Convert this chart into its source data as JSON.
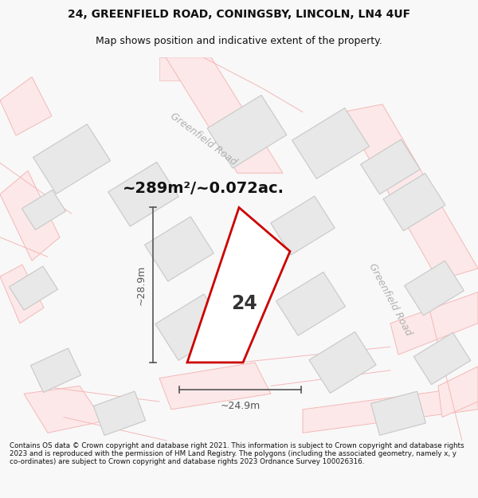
{
  "title": "24, GREENFIELD ROAD, CONINGSBY, LINCOLN, LN4 4UF",
  "subtitle": "Map shows position and indicative extent of the property.",
  "area_text": "~289m²/~0.072ac.",
  "number_label": "24",
  "dim_width": "~24.9m",
  "dim_height": "~28.9m",
  "footer": "Contains OS data © Crown copyright and database right 2021. This information is subject to Crown copyright and database rights 2023 and is reproduced with the permission of HM Land Registry. The polygons (including the associated geometry, namely x, y co-ordinates) are subject to Crown copyright and database rights 2023 Ordnance Survey 100026316.",
  "bg_color": "#f8f8f8",
  "map_bg": "#ffffff",
  "road_line_color": "#f5b8b8",
  "road_fill_color": "#fce8e8",
  "building_color": "#e8e8e8",
  "building_edge": "#c8c8c8",
  "plot_color_red": "#cc0000",
  "road_label_color": "#b0b0b0",
  "dim_color": "#555555",
  "title_color": "#111111",
  "footer_color": "#111111",
  "road_name_1": "Greenfield Road",
  "road_name_2": "Greenfield Road"
}
